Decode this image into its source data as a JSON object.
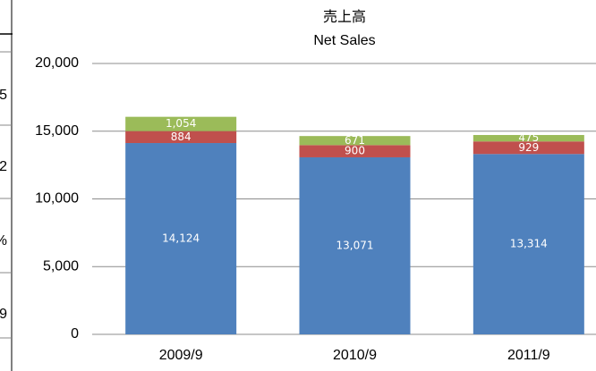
{
  "table_fragment": {
    "cells": [
      "5",
      "2",
      "%",
      "9"
    ]
  },
  "chart_data": {
    "type": "stacked_bar",
    "title": "売上高",
    "subtitle": "Net Sales",
    "categories": [
      "2009/9",
      "2010/9",
      "2011/9"
    ],
    "series": [
      {
        "color": "#4f81bd",
        "values": [
          14124,
          13071,
          13314
        ],
        "value_labels": [
          "14,124",
          "13,071",
          "13,314"
        ]
      },
      {
        "color": "#c0504d",
        "values": [
          884,
          900,
          929
        ]
      },
      {
        "color": "#9bbb59",
        "values": [
          1054,
          671,
          475
        ],
        "value_labels": [
          "1,054",
          "671",
          "475"
        ]
      }
    ],
    "ylim": [
      0,
      20000
    ],
    "yticks": [
      0,
      {
        "value": 5000,
        "label": "5,000"
      },
      {
        "value": 10000,
        "label": "10,000"
      },
      {
        "value": 15000,
        "label": "15,000"
      },
      {
        "value": 20000,
        "label": "20,000"
      }
    ],
    "grid": true
  }
}
